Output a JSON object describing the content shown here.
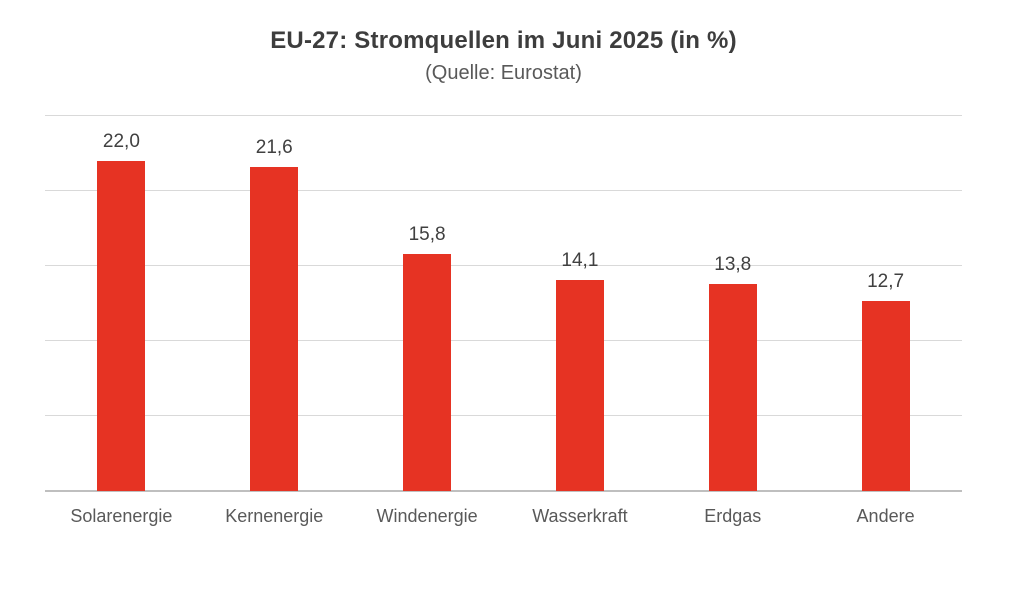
{
  "page": {
    "background": "#ffffff"
  },
  "chart_data": {
    "type": "bar",
    "title": "EU-27: Stromquellen im Juni 2025 (in %)",
    "subtitle": "(Quelle: Eurostat)",
    "categories": [
      "Solarenergie",
      "Kernenergie",
      "Windenergie",
      "Wasserkraft",
      "Erdgas",
      "Andere"
    ],
    "values": [
      22.0,
      21.6,
      15.8,
      14.1,
      13.8,
      12.7
    ],
    "value_labels": [
      "22,0",
      "21,6",
      "15,8",
      "14,1",
      "13,8",
      "12,7"
    ],
    "xlabel": "",
    "ylabel": "",
    "ylim": [
      0,
      25
    ],
    "gridline_interval": 5,
    "grid": true,
    "legend_position": "none",
    "y_tick_labels_visible": false,
    "bar_color": "#e63323",
    "gridline_color": "#d9d9d9",
    "axis_line_color": "#bfbfbf",
    "value_label_color": "#404040",
    "category_label_color": "#595959",
    "title_color": "#3d3d3d",
    "subtitle_color": "#595959"
  }
}
